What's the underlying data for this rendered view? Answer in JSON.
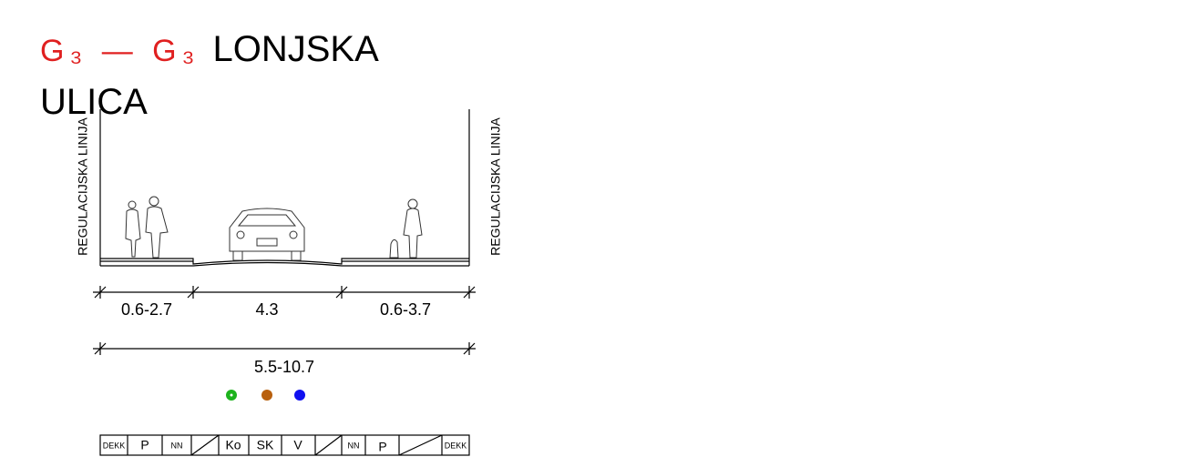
{
  "header": {
    "code": "G₃ — G₃",
    "title": "LONJSKA ULICA"
  },
  "side_labels": [
    "REGULACIJSKA LINIJA",
    "REGULACIJSKA LINIJA"
  ],
  "dimensions": [
    "0.6-2.7",
    "4.3",
    "0.6-3.7"
  ],
  "total_width": "5.5-10.7",
  "utility_table": [
    "DEKK",
    "P",
    "NN",
    "Ko",
    "SK",
    "V",
    "NN",
    "P",
    "DEKK"
  ]
}
